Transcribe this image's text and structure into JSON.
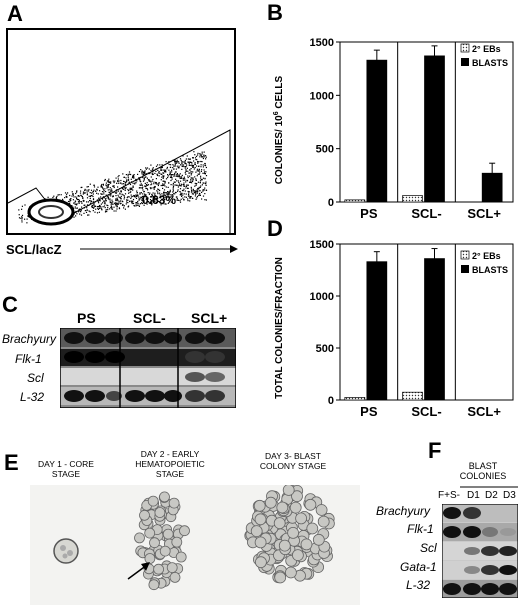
{
  "panels": {
    "a": "A",
    "b": "B",
    "c": "C",
    "d": "D",
    "e": "E",
    "f": "F"
  },
  "panel_a": {
    "gate_percent": "0.63%",
    "x_axis_label": "SCL/lacZ"
  },
  "panel_b": {
    "ylabel_main": "COLONIES/ 10",
    "ylabel_sup": "6",
    "ylabel_tail": " CELLS",
    "legend": [
      "2° EBs",
      "BLASTS"
    ]
  },
  "panel_d": {
    "ylabel": "TOTAL COLONIES/FRACTION",
    "legend": [
      "2° EBs",
      "BLASTS"
    ]
  },
  "chart_data": [
    {
      "type": "bar",
      "panel": "B",
      "categories": [
        "PS",
        "SCL-",
        "SCL+"
      ],
      "series": [
        {
          "name": "2° EBs",
          "values": [
            20,
            60,
            0
          ]
        },
        {
          "name": "BLASTS",
          "values": [
            1330,
            1370,
            270
          ]
        }
      ],
      "yticks": [
        0,
        500,
        1000,
        1500
      ],
      "ylim": [
        0,
        1500
      ]
    },
    {
      "type": "bar",
      "panel": "D",
      "categories": [
        "PS",
        "SCL-",
        "SCL+"
      ],
      "series": [
        {
          "name": "2° EBs",
          "values": [
            25,
            75,
            0
          ]
        },
        {
          "name": "BLASTS",
          "values": [
            1330,
            1360,
            0
          ]
        }
      ],
      "yticks": [
        0,
        500,
        1000,
        1500
      ],
      "ylim": [
        0,
        1500
      ]
    }
  ],
  "panel_c": {
    "lanes": [
      "PS",
      "SCL-",
      "SCL+"
    ],
    "genes": [
      "Brachyury",
      "Flk-1",
      "Scl",
      "L-32"
    ]
  },
  "panel_e": {
    "stages": [
      "DAY 1 - CORE STAGE",
      "DAY 2 - EARLY HEMATOPOIETIC STAGE",
      "DAY 3- BLAST COLONY STAGE"
    ]
  },
  "panel_f": {
    "header": "BLAST COLONIES",
    "lanes": [
      "F+S-",
      "D1",
      "D2",
      "D3"
    ],
    "genes": [
      "Brachyury",
      "Flk-1",
      "Scl",
      "Gata-1",
      "L-32"
    ]
  }
}
